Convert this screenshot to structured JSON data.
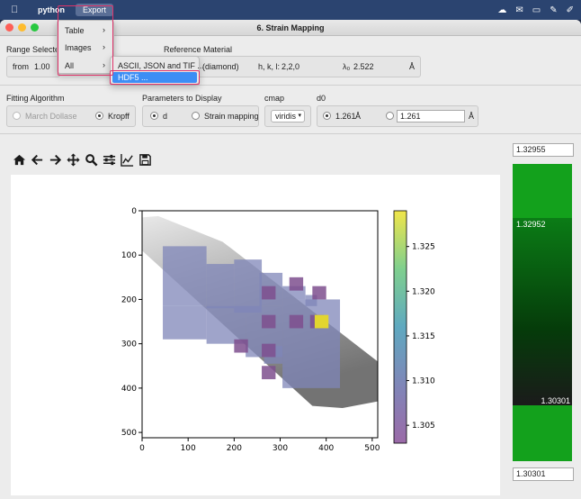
{
  "menubar": {
    "app": "python",
    "active_menu": "Export"
  },
  "window": {
    "title": "6. Strain Mapping"
  },
  "range": {
    "header": "Range Selected",
    "from_label": "from",
    "from_value": "1.00"
  },
  "reference": {
    "header": "Reference Material",
    "material": "(diamond)",
    "hkl_label": "h, k, l:",
    "hkl_value": "2,2,0",
    "lambda_label": "λ₀",
    "lambda_value": "2.522",
    "lambda_unit": "Å"
  },
  "fitting": {
    "header": "Fitting Algorithm",
    "opt1": "March Dollase",
    "opt2": "Kropff"
  },
  "params": {
    "header": "Parameters to Display",
    "opt1": "d",
    "opt2": "Strain mapping"
  },
  "cmap": {
    "header": "cmap",
    "value": "viridis"
  },
  "d0": {
    "header": "d0",
    "value1": "1.261",
    "unit1": "Å",
    "value2": "1.261",
    "unit2": "Å"
  },
  "scale": {
    "top": "1.32955",
    "mid_high": "1.32952",
    "mid_low": "1.30301",
    "bottom": "1.30301"
  },
  "export_menu": {
    "items": [
      "Table",
      "Images",
      "All"
    ],
    "submenu": [
      "ASCII, JSON and TIF ...",
      "HDF5 ..."
    ]
  },
  "colors": {
    "accent": "#3d8ef5",
    "highlight": "#e0336a",
    "scale_green": "#1aa01a"
  },
  "chart_data": {
    "type": "heatmap",
    "xticks": [
      0,
      100,
      200,
      300,
      400,
      500
    ],
    "yticks": [
      0,
      100,
      200,
      300,
      400,
      500
    ],
    "xlim": [
      0,
      512
    ],
    "ylim": [
      512,
      0
    ],
    "colorbar_ticks": [
      "1.325",
      "1.320",
      "1.315",
      "1.310",
      "1.305"
    ],
    "colorbar_range": [
      1.303,
      1.329
    ],
    "colormap": "viridis"
  }
}
